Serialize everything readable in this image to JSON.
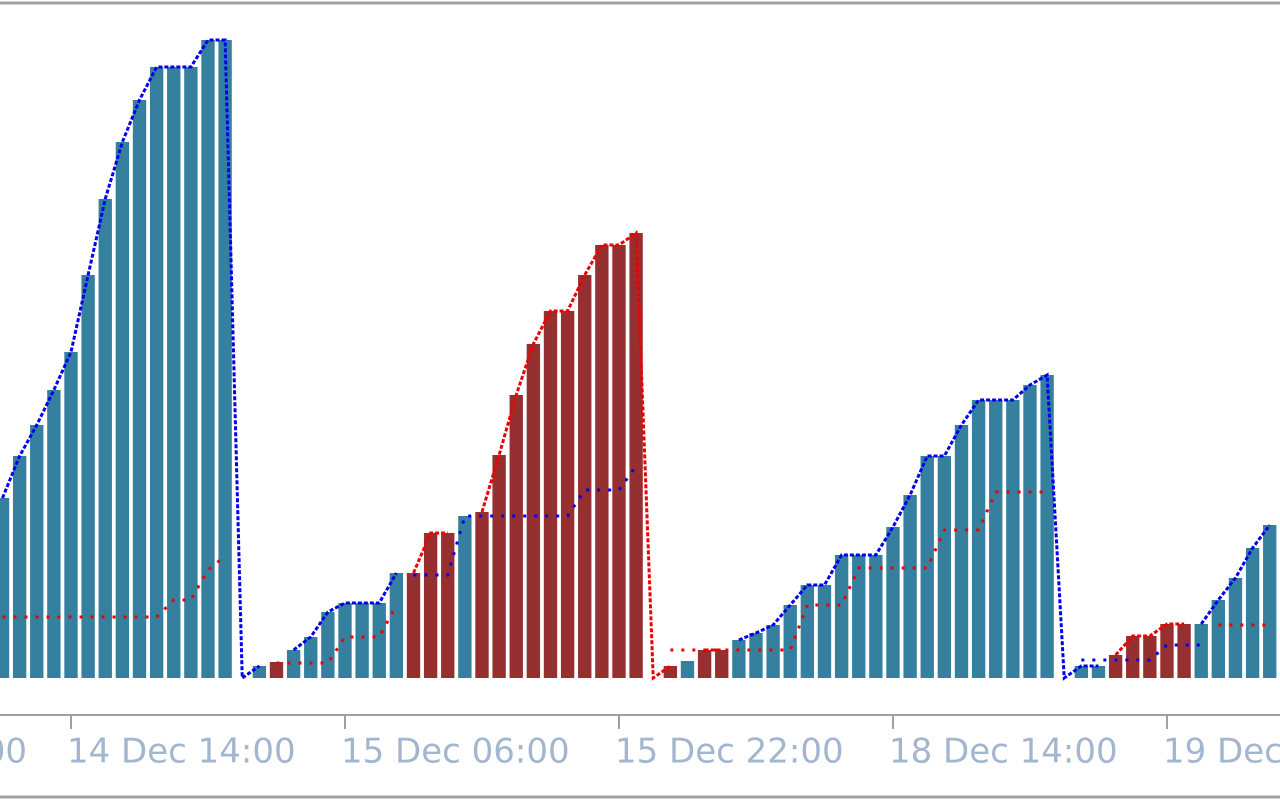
{
  "chart_data": {
    "type": "bar",
    "categories": [
      null,
      null,
      null,
      null,
      null,
      null,
      null,
      null,
      null,
      null,
      null,
      null,
      null,
      null,
      null,
      null,
      null,
      null,
      null,
      null,
      null,
      null,
      null,
      null,
      null,
      null,
      null,
      null,
      null,
      null,
      null,
      null,
      null,
      null,
      null,
      null,
      null,
      null,
      null,
      null,
      null,
      null,
      null,
      null,
      null,
      null,
      null,
      null,
      null,
      null,
      null,
      null,
      null,
      null,
      null,
      null,
      null,
      null,
      null,
      null,
      null,
      null,
      null,
      null,
      null,
      null,
      null,
      null,
      null,
      null,
      null,
      null,
      null,
      null,
      null
    ],
    "xlim": [
      -0.146,
      74.6
    ],
    "ylim": [
      0,
      640
    ],
    "xticks": [
      {
        "value": -12,
        "label": "00"
      },
      {
        "value": 4,
        "label": "14 Dec 14:00"
      },
      {
        "value": 20,
        "label": "15 Dec 06:00"
      },
      {
        "value": 36,
        "label": "15 Dec 22:00"
      },
      {
        "value": 52,
        "label": "18 Dec 14:00"
      },
      {
        "value": 68,
        "label": "19 Dec"
      }
    ],
    "series": [
      {
        "type": "bar",
        "color": "#34809e",
        "values": [
          180,
          222,
          253,
          288,
          326,
          403,
          479,
          536,
          578,
          611,
          611,
          611,
          638,
          638,
          0,
          12,
          null,
          28,
          41,
          66,
          75,
          75,
          75,
          105,
          null,
          null,
          null,
          162,
          null,
          null,
          null,
          null,
          null,
          null,
          null,
          null,
          null,
          null,
          null,
          null,
          17,
          null,
          null,
          38,
          45,
          53,
          73,
          93,
          93,
          123,
          123,
          123,
          151,
          183,
          222,
          222,
          253,
          278,
          278,
          278,
          293,
          303,
          0,
          12,
          12,
          null,
          null,
          null,
          null,
          null,
          54,
          78,
          100,
          130,
          153
        ]
      },
      {
        "type": "bar",
        "color": "#962f30",
        "values": [
          null,
          null,
          null,
          null,
          null,
          null,
          null,
          null,
          null,
          null,
          null,
          null,
          null,
          null,
          null,
          null,
          16,
          null,
          null,
          null,
          null,
          null,
          null,
          null,
          105,
          145,
          145,
          null,
          166,
          223,
          283,
          334,
          367,
          367,
          403,
          433,
          433,
          445,
          0,
          12,
          null,
          28,
          28,
          null,
          null,
          null,
          null,
          null,
          null,
          null,
          null,
          null,
          null,
          null,
          null,
          null,
          null,
          null,
          null,
          null,
          null,
          null,
          null,
          null,
          null,
          23,
          42,
          42,
          54,
          54,
          null,
          null,
          null,
          null,
          null
        ]
      },
      {
        "type": "line",
        "color": "#0000ee",
        "values": [
          180,
          222,
          253,
          288,
          326,
          403,
          479,
          536,
          578,
          611,
          611,
          611,
          638,
          638,
          0,
          12,
          null,
          28,
          41,
          66,
          75,
          75,
          75,
          105,
          null,
          null,
          null,
          162,
          null,
          null,
          null,
          null,
          null,
          null,
          null,
          null,
          null,
          null,
          null,
          null,
          17,
          null,
          null,
          38,
          45,
          53,
          73,
          93,
          93,
          123,
          123,
          123,
          151,
          183,
          222,
          222,
          253,
          278,
          278,
          278,
          293,
          303,
          0,
          12,
          12,
          null,
          null,
          null,
          null,
          null,
          54,
          78,
          100,
          130,
          153
        ]
      },
      {
        "type": "line",
        "color": "#ee0000",
        "values": [
          null,
          null,
          null,
          null,
          null,
          null,
          null,
          null,
          null,
          null,
          null,
          null,
          null,
          null,
          null,
          null,
          16,
          null,
          null,
          null,
          null,
          null,
          null,
          null,
          105,
          145,
          145,
          null,
          166,
          223,
          283,
          334,
          367,
          367,
          403,
          433,
          433,
          445,
          0,
          12,
          null,
          28,
          28,
          null,
          null,
          null,
          null,
          null,
          null,
          null,
          null,
          null,
          null,
          null,
          null,
          null,
          null,
          null,
          null,
          null,
          null,
          null,
          null,
          null,
          null,
          23,
          42,
          42,
          54,
          54,
          null,
          null,
          null,
          null,
          null
        ]
      },
      {
        "type": "signal",
        "color": "#ee0000",
        "values": [
          61,
          61,
          61,
          61,
          61,
          61,
          61,
          61,
          61,
          61,
          78,
          78,
          108,
          122,
          null,
          null,
          15,
          15,
          15,
          15,
          41,
          41,
          41,
          73,
          null,
          null,
          null,
          null,
          null,
          null,
          null,
          null,
          null,
          null,
          null,
          null,
          null,
          null,
          null,
          28,
          28,
          28,
          28,
          28,
          28,
          28,
          28,
          73,
          73,
          73,
          110,
          110,
          110,
          110,
          110,
          148,
          148,
          148,
          186,
          186,
          186,
          186,
          null,
          null,
          null,
          null,
          null,
          null,
          null,
          null,
          null,
          53,
          53,
          53,
          53
        ]
      },
      {
        "type": "signal",
        "color": "#0000ee",
        "values": [
          null,
          null,
          null,
          null,
          null,
          null,
          null,
          null,
          null,
          null,
          null,
          null,
          null,
          null,
          null,
          null,
          null,
          null,
          null,
          null,
          null,
          null,
          null,
          null,
          103,
          103,
          103,
          162,
          162,
          162,
          162,
          162,
          162,
          162,
          188,
          188,
          188,
          212,
          null,
          null,
          null,
          null,
          null,
          null,
          null,
          null,
          null,
          null,
          null,
          null,
          null,
          null,
          null,
          null,
          null,
          null,
          null,
          null,
          null,
          null,
          null,
          null,
          null,
          18,
          18,
          18,
          18,
          18,
          33,
          33,
          33,
          null,
          null,
          null,
          null
        ]
      }
    ]
  }
}
